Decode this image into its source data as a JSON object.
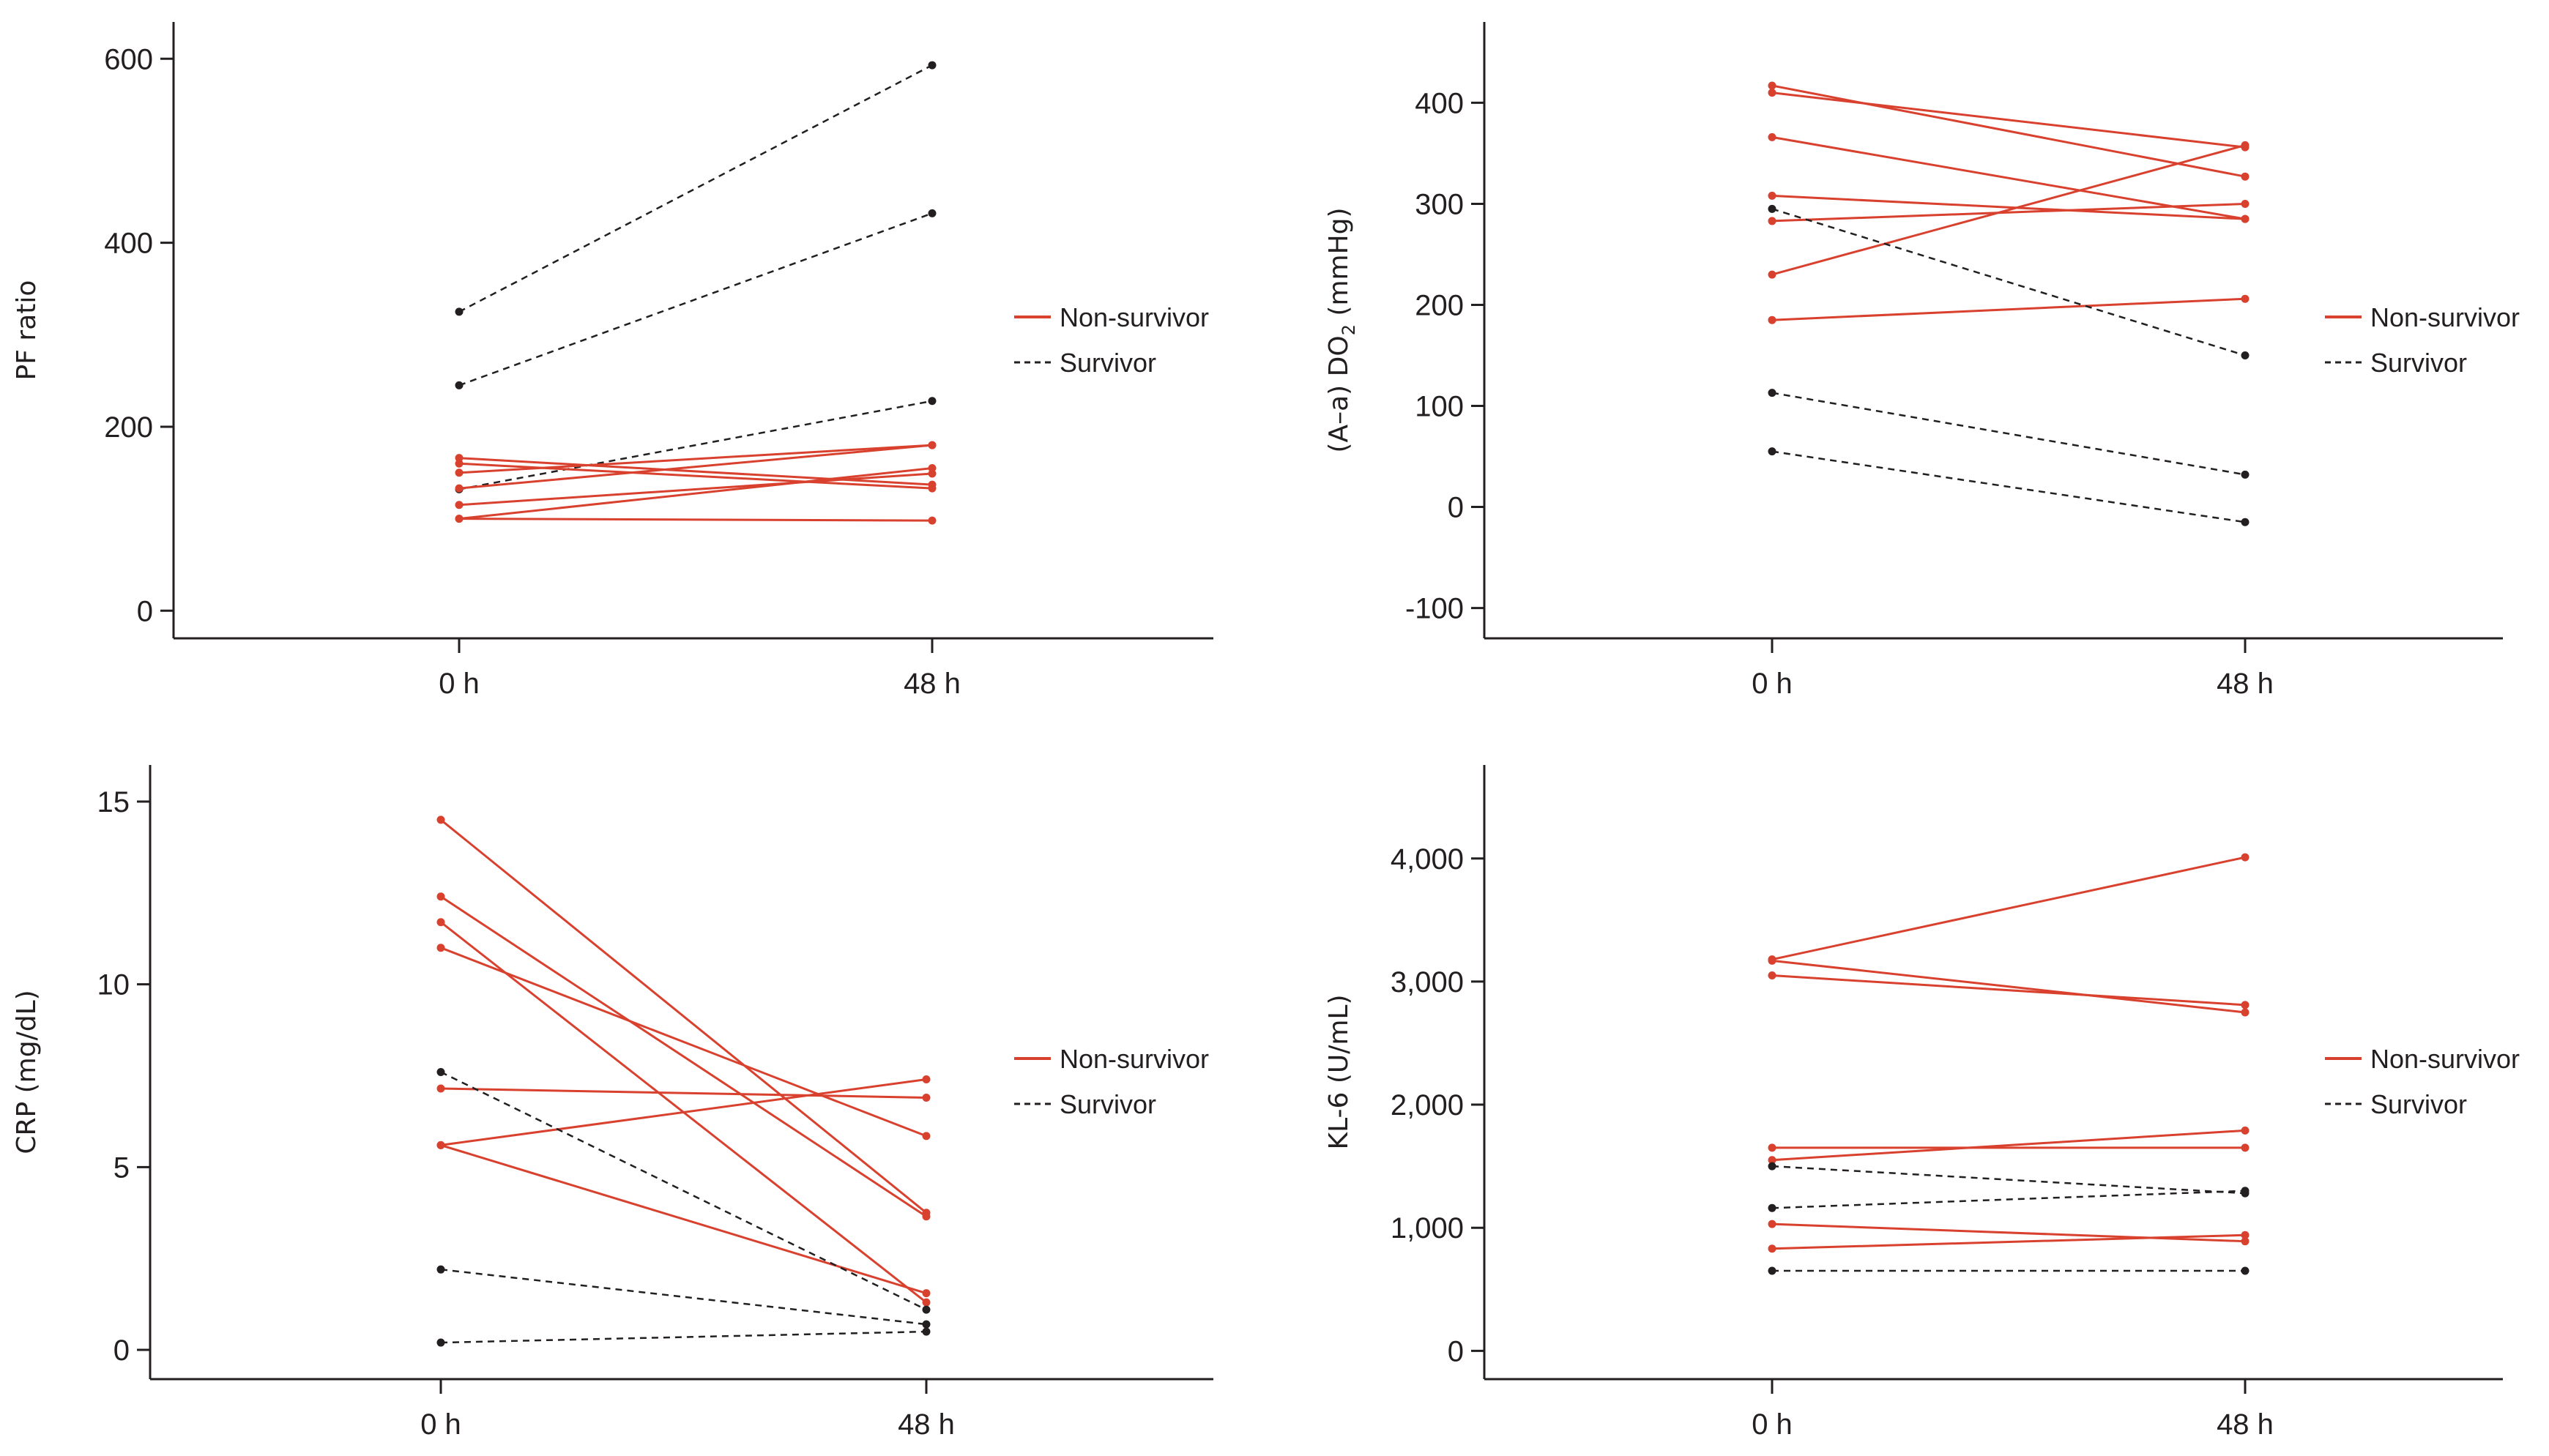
{
  "colors": {
    "non_survivor": "#d9412f",
    "survivor": "#231f20",
    "axis": "#231f20"
  },
  "legend": {
    "non_survivor": "Non-survivor",
    "survivor": "Survivor"
  },
  "chart_data": [
    {
      "id": "pf",
      "type": "line",
      "title": "",
      "ylabel": "PF ratio",
      "ylabel_sub": null,
      "xlabel": "",
      "categories": [
        "0 h",
        "48 h"
      ],
      "ylim": [
        -30,
        640
      ],
      "yticks": [
        0,
        200,
        400,
        600
      ],
      "ytick_labels": [
        "0",
        "200",
        "400",
        "600"
      ],
      "grid": false,
      "legend_position": "right",
      "series": [
        {
          "group": "survivor",
          "values": [
            325,
            593
          ]
        },
        {
          "group": "survivor",
          "values": [
            245,
            432
          ]
        },
        {
          "group": "survivor",
          "values": [
            132,
            228
          ]
        },
        {
          "group": "non_survivor",
          "values": [
            166,
            137
          ]
        },
        {
          "group": "non_survivor",
          "values": [
            160,
            133
          ]
        },
        {
          "group": "non_survivor",
          "values": [
            150,
            180
          ]
        },
        {
          "group": "non_survivor",
          "values": [
            133,
            180
          ]
        },
        {
          "group": "non_survivor",
          "values": [
            115,
            149
          ]
        },
        {
          "group": "non_survivor",
          "values": [
            100,
            155
          ]
        },
        {
          "group": "non_survivor",
          "values": [
            100,
            98
          ]
        }
      ]
    },
    {
      "id": "aado2",
      "type": "line",
      "title": "",
      "ylabel": "(A–a) DO",
      "ylabel_sub": "2",
      "ylabel_suffix": " (mmHg)",
      "xlabel": "",
      "categories": [
        "0 h",
        "48 h"
      ],
      "ylim": [
        -130,
        480
      ],
      "yticks": [
        -100,
        0,
        100,
        200,
        300,
        400
      ],
      "ytick_labels": [
        "-100",
        "0",
        "100",
        "200",
        "300",
        "400"
      ],
      "grid": false,
      "legend_position": "right",
      "series": [
        {
          "group": "non_survivor",
          "values": [
            417,
            327
          ]
        },
        {
          "group": "non_survivor",
          "values": [
            410,
            356
          ]
        },
        {
          "group": "non_survivor",
          "values": [
            366,
            285
          ]
        },
        {
          "group": "non_survivor",
          "values": [
            308,
            285
          ]
        },
        {
          "group": "non_survivor",
          "values": [
            283,
            300
          ]
        },
        {
          "group": "non_survivor",
          "values": [
            230,
            358
          ]
        },
        {
          "group": "non_survivor",
          "values": [
            185,
            206
          ]
        },
        {
          "group": "survivor",
          "values": [
            295,
            150
          ]
        },
        {
          "group": "survivor",
          "values": [
            113,
            32
          ]
        },
        {
          "group": "survivor",
          "values": [
            55,
            -15
          ]
        }
      ]
    },
    {
      "id": "crp",
      "type": "line",
      "title": "",
      "ylabel": "CRP (mg/dL)",
      "ylabel_sub": null,
      "xlabel": "",
      "categories": [
        "0 h",
        "48 h"
      ],
      "ylim": [
        -0.8,
        16
      ],
      "yticks": [
        0,
        5,
        10,
        15
      ],
      "ytick_labels": [
        "0",
        "5",
        "10",
        "15"
      ],
      "grid": false,
      "legend_position": "right",
      "series": [
        {
          "group": "non_survivor",
          "values": [
            14.5,
            3.75
          ]
        },
        {
          "group": "non_survivor",
          "values": [
            12.4,
            3.65
          ]
        },
        {
          "group": "non_survivor",
          "values": [
            11.7,
            1.3
          ]
        },
        {
          "group": "non_survivor",
          "values": [
            11.0,
            5.85
          ]
        },
        {
          "group": "non_survivor",
          "values": [
            7.15,
            6.9
          ]
        },
        {
          "group": "non_survivor",
          "values": [
            5.6,
            7.4
          ]
        },
        {
          "group": "non_survivor",
          "values": [
            5.6,
            1.55
          ]
        },
        {
          "group": "survivor",
          "values": [
            7.6,
            1.1
          ]
        },
        {
          "group": "survivor",
          "values": [
            2.2,
            0.7
          ]
        },
        {
          "group": "survivor",
          "values": [
            0.2,
            0.5
          ]
        }
      ]
    },
    {
      "id": "kl6",
      "type": "line",
      "title": "",
      "ylabel": "KL-6 (U/mL)",
      "ylabel_sub": null,
      "xlabel": "",
      "categories": [
        "0 h",
        "48 h"
      ],
      "ylim": [
        -230,
        4760
      ],
      "yticks": [
        0,
        1000,
        2000,
        3000,
        4000
      ],
      "ytick_labels": [
        "0",
        "1,000",
        "2,000",
        "3,000",
        "4,000"
      ],
      "grid": false,
      "legend_position": "right",
      "series": [
        {
          "group": "non_survivor",
          "values": [
            3180,
            4010
          ]
        },
        {
          "group": "non_survivor",
          "values": [
            3170,
            2750
          ]
        },
        {
          "group": "non_survivor",
          "values": [
            3050,
            2810
          ]
        },
        {
          "group": "non_survivor",
          "values": [
            1650,
            1650
          ]
        },
        {
          "group": "non_survivor",
          "values": [
            1550,
            1790
          ]
        },
        {
          "group": "non_survivor",
          "values": [
            1030,
            890
          ]
        },
        {
          "group": "non_survivor",
          "values": [
            830,
            940
          ]
        },
        {
          "group": "survivor",
          "values": [
            1500,
            1280
          ]
        },
        {
          "group": "survivor",
          "values": [
            1160,
            1300
          ]
        },
        {
          "group": "survivor",
          "values": [
            650,
            650
          ]
        }
      ]
    }
  ]
}
